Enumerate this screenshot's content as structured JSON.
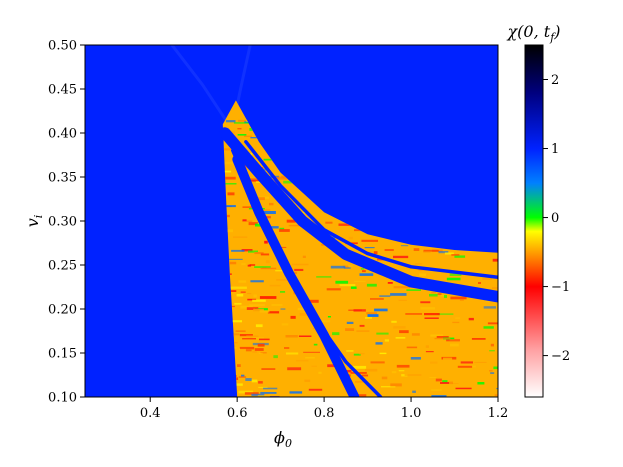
{
  "chart_data": {
    "type": "heatmap",
    "title": "",
    "xlabel": "ϕ",
    "xlabel_sub": "0",
    "ylabel": "v",
    "ylabel_sub": "i",
    "xlim": [
      0.25,
      1.2
    ],
    "ylim": [
      0.1,
      0.5
    ],
    "x_ticks": [
      0.4,
      0.6,
      0.8,
      1.0,
      1.2
    ],
    "x_tick_labels": [
      "0.4",
      "0.6",
      "0.8",
      "1.0",
      "1.2"
    ],
    "y_ticks": [
      0.1,
      0.15,
      0.2,
      0.25,
      0.3,
      0.35,
      0.4,
      0.45,
      0.5
    ],
    "y_tick_labels": [
      "0.10",
      "0.15",
      "0.20",
      "0.25",
      "0.30",
      "0.35",
      "0.40",
      "0.45",
      "0.50"
    ],
    "colorbar": {
      "label": "χ(0, t",
      "label_sub": "f",
      "label_tail": ")",
      "range": [
        -2.6,
        2.5
      ],
      "ticks": [
        -2,
        -1,
        0,
        1,
        2
      ],
      "tick_labels": [
        "−2",
        "−1",
        "0",
        "1",
        "2"
      ],
      "colors": [
        {
          "value": -2.6,
          "color": "#ffffff"
        },
        {
          "value": -1.9,
          "color": "#ff9ea0"
        },
        {
          "value": -1.0,
          "color": "#ff0000"
        },
        {
          "value": -0.5,
          "color": "#ffa000"
        },
        {
          "value": -0.2,
          "color": "#ffff00"
        },
        {
          "value": 0.0,
          "color": "#00ff00"
        },
        {
          "value": 0.5,
          "color": "#0080ff"
        },
        {
          "value": 1.0,
          "color": "#0022ff"
        },
        {
          "value": 1.8,
          "color": "#000080"
        },
        {
          "value": 2.5,
          "color": "#000000"
        }
      ]
    },
    "background_value": 1.0,
    "regions": {
      "threshold_boundary": [
        {
          "x": 0.567,
          "y": 0.41
        },
        {
          "x": 0.575,
          "y": 0.32
        },
        {
          "x": 0.583,
          "y": 0.24
        },
        {
          "x": 0.592,
          "y": 0.17
        },
        {
          "x": 0.6,
          "y": 0.1
        }
      ],
      "peak": {
        "x": 0.597,
        "y": 0.437
      },
      "upper_edge": [
        {
          "x": 0.597,
          "y": 0.437
        },
        {
          "x": 0.65,
          "y": 0.39
        },
        {
          "x": 0.7,
          "y": 0.355
        },
        {
          "x": 0.8,
          "y": 0.31
        },
        {
          "x": 0.9,
          "y": 0.285
        },
        {
          "x": 1.0,
          "y": 0.273
        },
        {
          "x": 1.1,
          "y": 0.267
        },
        {
          "x": 1.2,
          "y": 0.264
        }
      ],
      "blue_bands": [
        {
          "points": [
            {
              "x": 0.572,
              "y": 0.4
            },
            {
              "x": 0.65,
              "y": 0.355
            },
            {
              "x": 0.75,
              "y": 0.3
            },
            {
              "x": 0.85,
              "y": 0.262
            },
            {
              "x": 1.0,
              "y": 0.231
            },
            {
              "x": 1.2,
              "y": 0.214
            }
          ],
          "width": 0.013
        },
        {
          "points": [
            {
              "x": 0.62,
              "y": 0.39
            },
            {
              "x": 0.7,
              "y": 0.34
            },
            {
              "x": 0.8,
              "y": 0.29
            },
            {
              "x": 0.9,
              "y": 0.263
            },
            {
              "x": 1.0,
              "y": 0.248
            },
            {
              "x": 1.2,
              "y": 0.236
            }
          ],
          "width": 0.004
        },
        {
          "points": [
            {
              "x": 0.6,
              "y": 0.37
            },
            {
              "x": 0.65,
              "y": 0.31
            },
            {
              "x": 0.72,
              "y": 0.24
            },
            {
              "x": 0.8,
              "y": 0.17
            },
            {
              "x": 0.87,
              "y": 0.1
            }
          ],
          "width": 0.011
        },
        {
          "points": [
            {
              "x": 0.59,
              "y": 0.38
            },
            {
              "x": 0.66,
              "y": 0.3
            },
            {
              "x": 0.75,
              "y": 0.21
            },
            {
              "x": 0.85,
              "y": 0.14
            },
            {
              "x": 0.93,
              "y": 0.1
            }
          ],
          "width": 0.004
        }
      ]
    }
  }
}
